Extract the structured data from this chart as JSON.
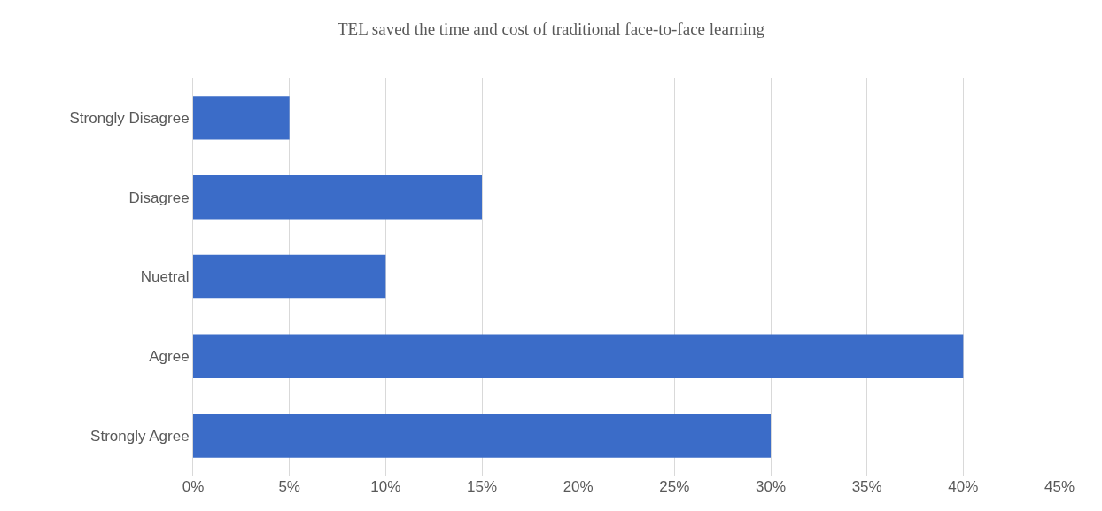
{
  "chart_data": {
    "type": "bar",
    "orientation": "horizontal",
    "title": "TEL saved the time and cost of traditional face-to-face learning",
    "categories": [
      "Strongly Disagree",
      "Disagree",
      "Nuetral",
      "Agree",
      "Strongly Agree"
    ],
    "values": [
      5,
      15,
      10,
      40,
      30
    ],
    "color": "#3b6cc8",
    "xlim": [
      0,
      45
    ],
    "xticks": [
      {
        "value": 0,
        "label": "0%"
      },
      {
        "value": 5,
        "label": "5%"
      },
      {
        "value": 10,
        "label": "10%"
      },
      {
        "value": 15,
        "label": "15%"
      },
      {
        "value": 20,
        "label": "20%"
      },
      {
        "value": 25,
        "label": "25%"
      },
      {
        "value": 30,
        "label": "30%"
      },
      {
        "value": 35,
        "label": "35%"
      },
      {
        "value": 40,
        "label": "40%"
      },
      {
        "value": 45,
        "label": "45%"
      }
    ],
    "grid": "x"
  }
}
